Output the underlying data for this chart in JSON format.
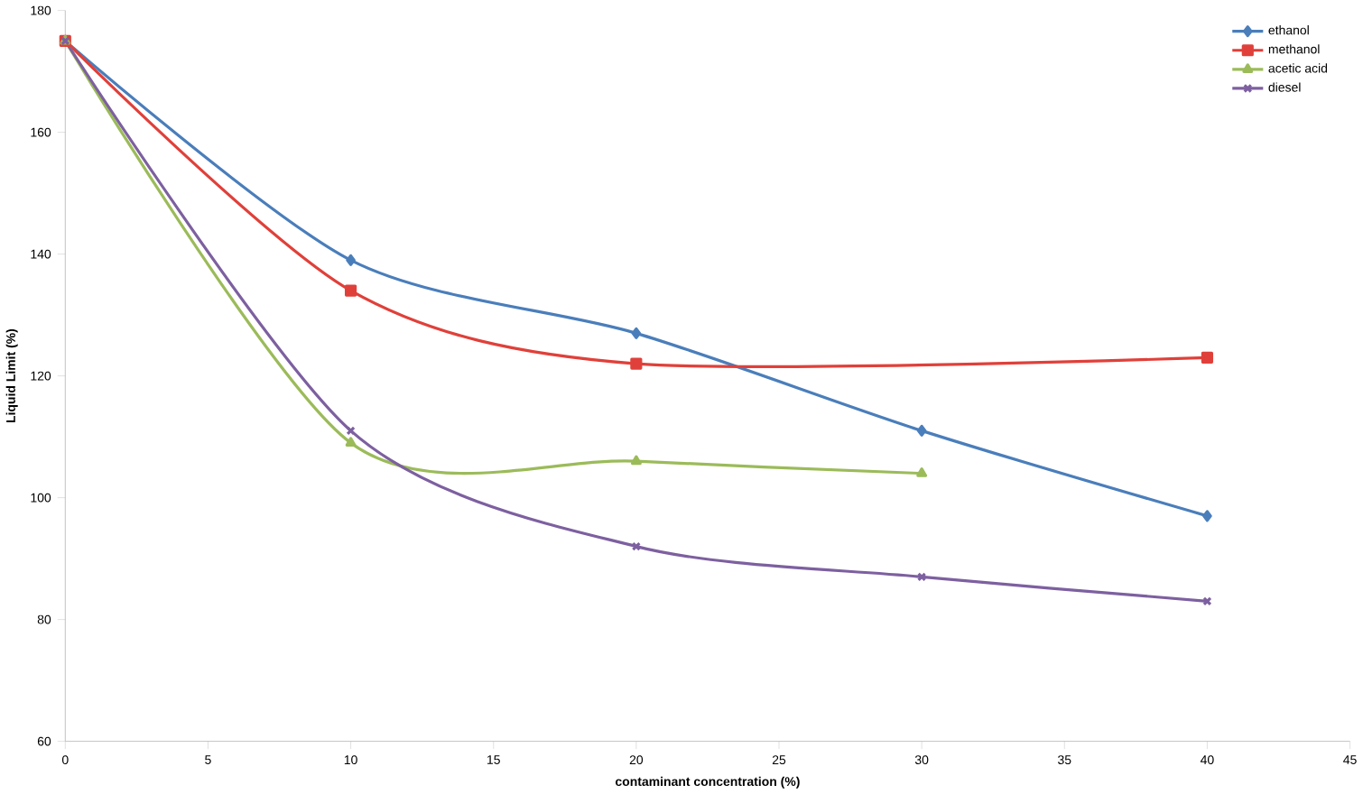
{
  "chart_data": {
    "type": "line",
    "xlabel": "contaminant concentration (%)",
    "ylabel": "Liquid Limit (%)",
    "xlim": [
      0,
      45
    ],
    "xticks": [
      0,
      5,
      10,
      15,
      20,
      25,
      30,
      35,
      40,
      45
    ],
    "ylim": [
      60,
      180
    ],
    "yticks": [
      60,
      80,
      100,
      120,
      140,
      160,
      180
    ],
    "grid": false,
    "legend": "top right",
    "line_style": "solid",
    "series": [
      {
        "name": "ethanol",
        "color": "#4a7ebb",
        "marker": "diamond",
        "x": [
          0,
          10,
          20,
          30,
          40
        ],
        "values": [
          175,
          139,
          127,
          111,
          97
        ]
      },
      {
        "name": "methanol",
        "color": "#e0403a",
        "marker": "square",
        "x": [
          0,
          10,
          20,
          40
        ],
        "values": [
          175,
          134,
          122,
          123
        ]
      },
      {
        "name": "acetic acid",
        "color": "#9bbb59",
        "marker": "triangle",
        "x": [
          0,
          10,
          20,
          30
        ],
        "values": [
          175,
          109,
          106,
          104
        ]
      },
      {
        "name": "diesel",
        "color": "#7d60a0",
        "marker": "cross",
        "x": [
          0,
          10,
          20,
          30,
          40
        ],
        "values": [
          175,
          111,
          92,
          87,
          83
        ]
      }
    ]
  }
}
